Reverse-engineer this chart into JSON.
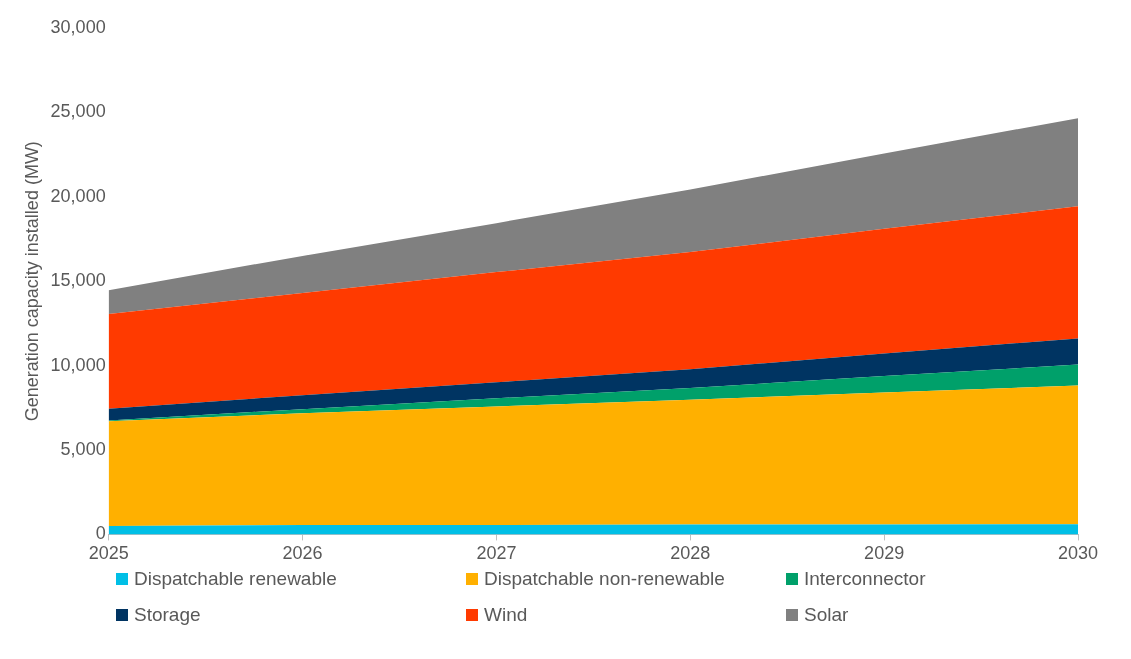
{
  "chart_data": {
    "type": "area",
    "ylabel": "Generation capacity installed (MW)",
    "stacked": true,
    "x": [
      2025,
      2026,
      2027,
      2028,
      2029,
      2030
    ],
    "xlim": [
      2025,
      2030
    ],
    "xticks": [
      2025,
      2026,
      2027,
      2028,
      2029,
      2030
    ],
    "ylim": [
      0,
      30000
    ],
    "yticks": [
      0,
      {
        "value": 5000,
        "label": "5,000"
      },
      {
        "value": 10000,
        "label": "10,000"
      },
      {
        "value": 15000,
        "label": "15,000"
      },
      {
        "value": 20000,
        "label": "20,000"
      },
      {
        "value": 25000,
        "label": "25,000"
      },
      {
        "value": 30000,
        "label": "30,000"
      }
    ],
    "grid": false,
    "legend": "bottom",
    "series": [
      {
        "name": "Dispatchable renewable",
        "color": "#00bfe6",
        "values": [
          500,
          550,
          560,
          580,
          590,
          600
        ]
      },
      {
        "name": "Dispatchable non-renewable",
        "color": "#ffb000",
        "values": [
          6200,
          6620,
          7020,
          7400,
          7810,
          8220
        ]
      },
      {
        "name": "Interconnector",
        "color": "#00a06a",
        "values": [
          50,
          250,
          480,
          700,
          980,
          1240
        ]
      },
      {
        "name": "Storage",
        "color": "#003462",
        "values": [
          700,
          830,
          950,
          1100,
          1330,
          1550
        ]
      },
      {
        "name": "Wind",
        "color": "#ff3a00",
        "values": [
          5600,
          6050,
          6530,
          6950,
          7400,
          7830
        ]
      },
      {
        "name": "Solar",
        "color": "#808080",
        "values": [
          1420,
          2200,
          2900,
          3700,
          4450,
          5220
        ]
      }
    ]
  }
}
